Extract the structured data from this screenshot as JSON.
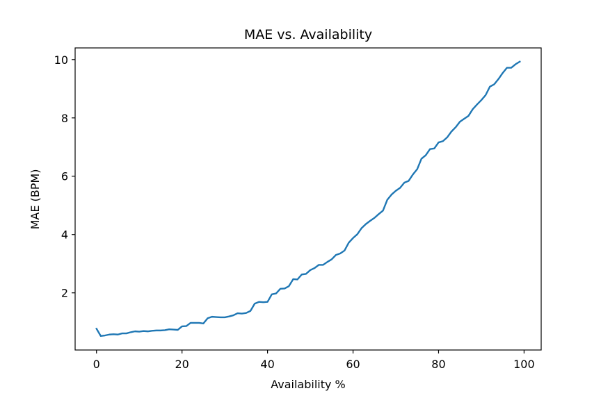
{
  "chart_data": {
    "type": "line",
    "title": "MAE vs. Availability",
    "xlabel": "Availability %",
    "ylabel": "MAE (BPM)",
    "xlim": [
      -5,
      104
    ],
    "ylim": [
      0.04,
      10.4
    ],
    "xticks": [
      0,
      20,
      40,
      60,
      80,
      100
    ],
    "yticks": [
      2,
      4,
      6,
      8,
      10
    ],
    "xtick_labels": [
      "0",
      "20",
      "40",
      "60",
      "80",
      "100"
    ],
    "ytick_labels": [
      "2",
      "4",
      "6",
      "8",
      "10"
    ],
    "grid": false,
    "legend": null,
    "series": [
      {
        "name": "MAE",
        "color": "#1f77b4",
        "x": [
          0,
          1,
          2,
          3,
          4,
          5,
          6,
          7,
          8,
          9,
          10,
          11,
          12,
          13,
          14,
          15,
          16,
          17,
          18,
          19,
          20,
          21,
          22,
          23,
          24,
          25,
          26,
          27,
          28,
          29,
          30,
          31,
          32,
          33,
          34,
          35,
          36,
          37,
          38,
          39,
          40,
          41,
          42,
          43,
          44,
          45,
          46,
          47,
          48,
          49,
          50,
          51,
          52,
          53,
          54,
          55,
          56,
          57,
          58,
          59,
          60,
          61,
          62,
          63,
          64,
          65,
          66,
          67,
          68,
          69,
          70,
          71,
          72,
          73,
          74,
          75,
          76,
          77,
          78,
          79,
          80,
          81,
          82,
          83,
          84,
          85,
          86,
          87,
          88,
          89,
          90,
          91,
          92,
          93,
          94,
          95,
          96,
          97,
          98,
          99
        ],
        "y": [
          0.77,
          0.52,
          0.54,
          0.57,
          0.58,
          0.57,
          0.61,
          0.61,
          0.65,
          0.68,
          0.67,
          0.69,
          0.68,
          0.7,
          0.71,
          0.71,
          0.72,
          0.75,
          0.74,
          0.73,
          0.85,
          0.86,
          0.97,
          0.97,
          0.97,
          0.95,
          1.13,
          1.18,
          1.17,
          1.16,
          1.16,
          1.19,
          1.23,
          1.3,
          1.29,
          1.31,
          1.38,
          1.63,
          1.69,
          1.68,
          1.69,
          1.95,
          1.98,
          2.14,
          2.15,
          2.23,
          2.47,
          2.46,
          2.63,
          2.65,
          2.78,
          2.85,
          2.96,
          2.96,
          3.06,
          3.15,
          3.3,
          3.35,
          3.45,
          3.72,
          3.88,
          4.01,
          4.22,
          4.36,
          4.47,
          4.57,
          4.7,
          4.82,
          5.19,
          5.37,
          5.5,
          5.6,
          5.78,
          5.84,
          6.06,
          6.24,
          6.6,
          6.72,
          6.93,
          6.95,
          7.16,
          7.2,
          7.33,
          7.53,
          7.68,
          7.87,
          7.97,
          8.07,
          8.3,
          8.46,
          8.61,
          8.78,
          9.07,
          9.15,
          9.33,
          9.54,
          9.72,
          9.72,
          9.84,
          9.93
        ]
      }
    ]
  }
}
